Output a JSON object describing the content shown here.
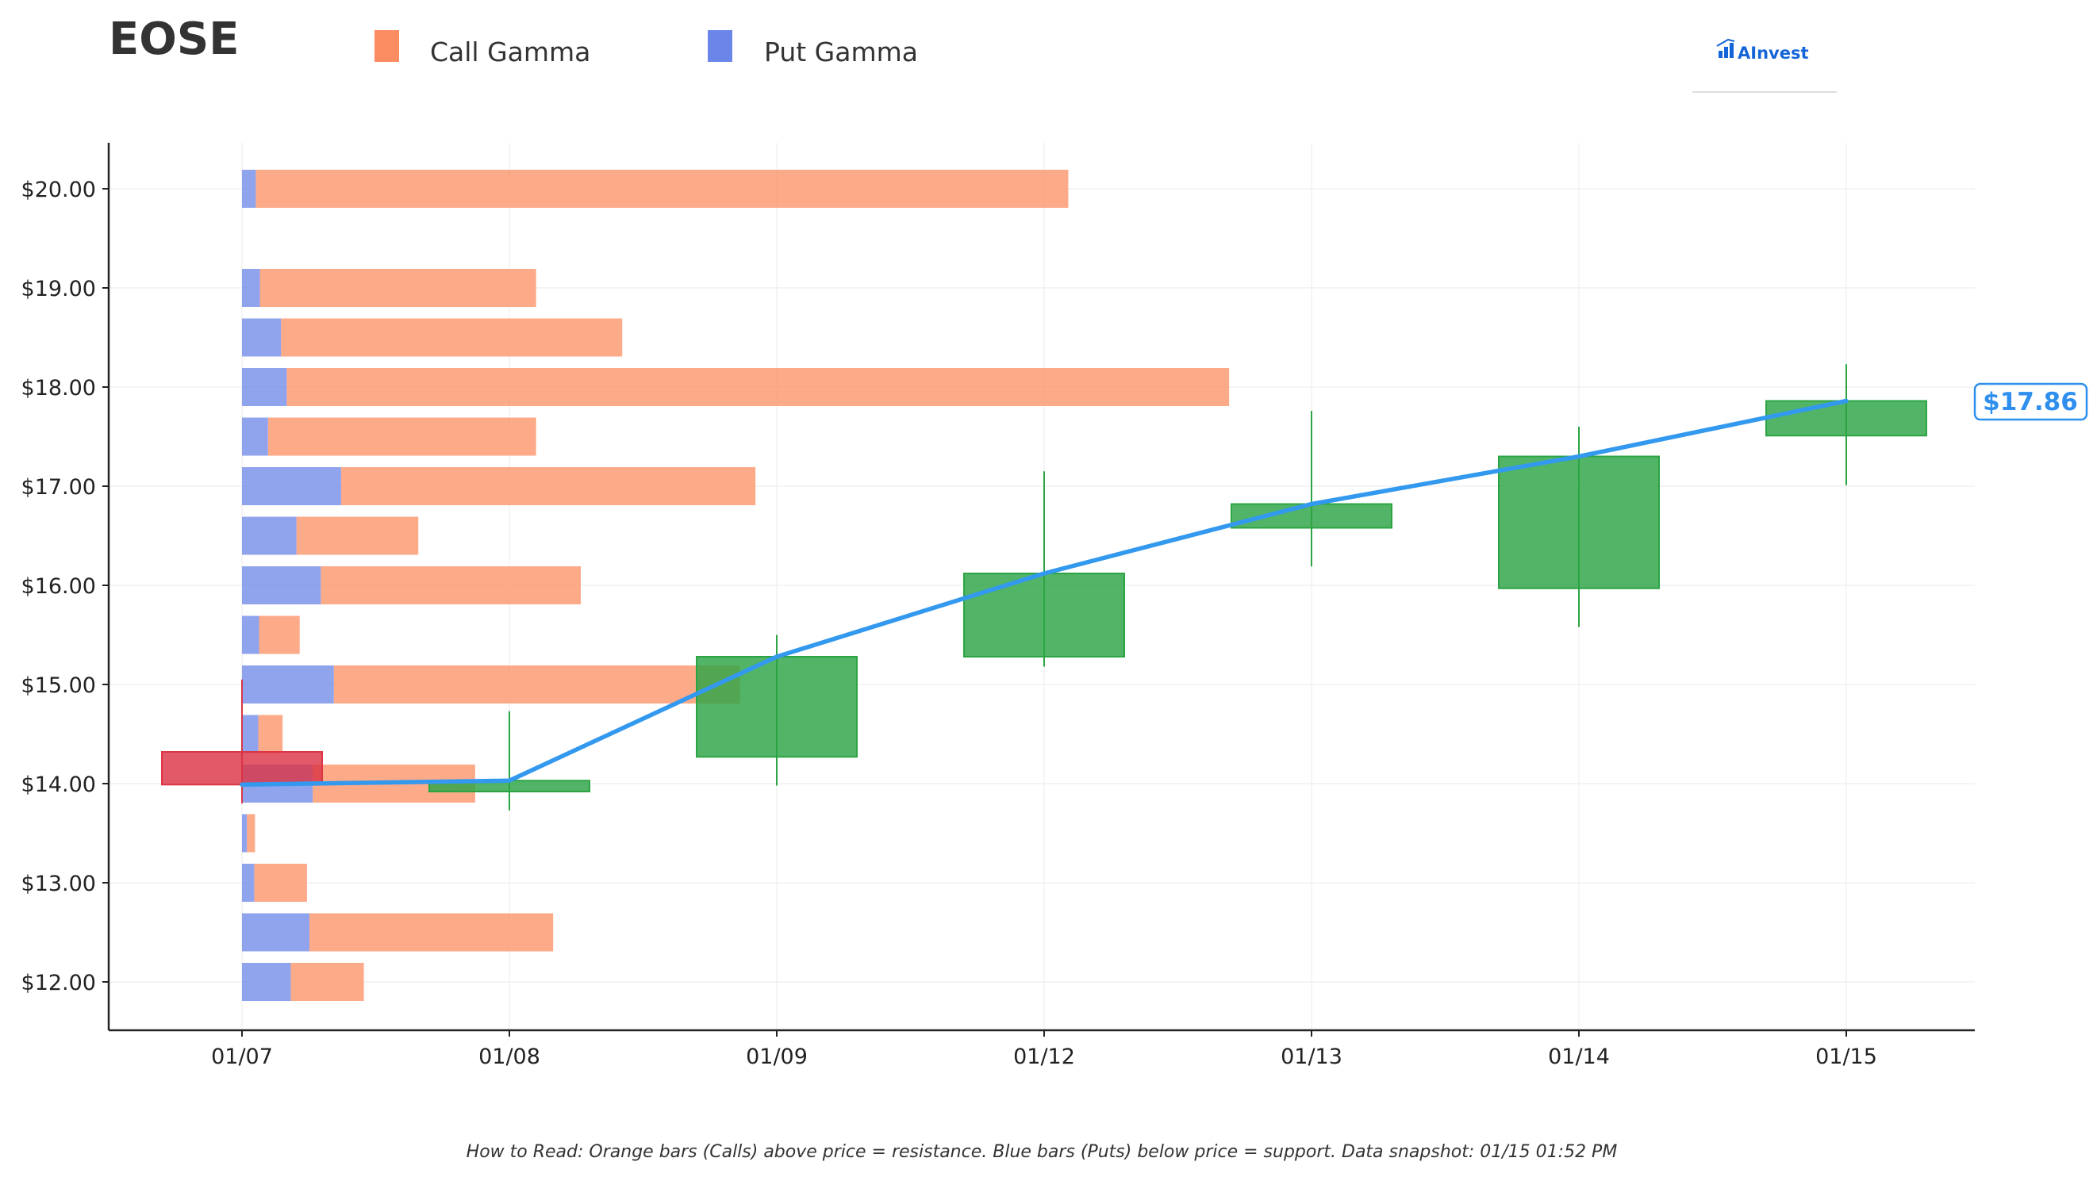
{
  "title": "EOSE",
  "legend": [
    {
      "label": "Call Gamma",
      "color": "#fc8d62"
    },
    {
      "label": "Put Gamma",
      "color": "#6b86e8"
    }
  ],
  "logo": {
    "text": "AInvest",
    "icon": "ainvest-logo-icon"
  },
  "current_price_label": "$17.86",
  "footnote": "How to Read: Orange bars (Calls) above price = resistance. Blue bars (Puts) below price = support. Data snapshot: 01/15 01:52 PM",
  "colors": {
    "call": "#fc8d62",
    "put": "#6b86e8",
    "candle_up": "#2ca444",
    "candle_down": "#dc3545",
    "price_line": "#3399ee",
    "axis": "#222222",
    "grid": "#eeeeee"
  },
  "chart_data": {
    "type": "bar",
    "dates": [
      "01/07",
      "01/08",
      "01/09",
      "01/12",
      "01/13",
      "01/14",
      "01/15"
    ],
    "ylim": [
      11.5,
      20.5
    ],
    "y_ticks": [
      {
        "value": 12,
        "label": "$12.00"
      },
      {
        "value": 13,
        "label": "$13.00"
      },
      {
        "value": 14,
        "label": "$14.00"
      },
      {
        "value": 15,
        "label": "$15.00"
      },
      {
        "value": 16,
        "label": "$16.00"
      },
      {
        "value": 17,
        "label": "$17.00"
      },
      {
        "value": 18,
        "label": "$18.00"
      },
      {
        "value": 19,
        "label": "$19.00"
      },
      {
        "value": 20,
        "label": "$20.00"
      }
    ],
    "grid": true,
    "gamma_scale_max": 100,
    "gamma_strikes": [
      12,
      12.5,
      13,
      13.5,
      14,
      14.5,
      15,
      15.5,
      16,
      16.5,
      17,
      17.5,
      18,
      18.5,
      19,
      20
    ],
    "call_gamma": [
      9,
      30,
      6.5,
      1,
      20,
      3,
      50,
      5,
      32,
      15,
      51,
      33,
      116,
      42,
      34,
      100
    ],
    "put_gamma": [
      6,
      8.3,
      1.5,
      0.6,
      8.7,
      2,
      11.3,
      2.1,
      9.7,
      6.7,
      12.2,
      3.2,
      5.5,
      4.8,
      2.2,
      1.7
    ],
    "candles": [
      {
        "date": "01/07",
        "open": 14.32,
        "close": 13.99,
        "high": 15.05,
        "low": 13.8
      },
      {
        "date": "01/08",
        "open": 13.92,
        "close": 14.03,
        "high": 14.73,
        "low": 13.73
      },
      {
        "date": "01/09",
        "open": 14.27,
        "close": 15.28,
        "high": 15.5,
        "low": 13.98
      },
      {
        "date": "01/12",
        "open": 15.28,
        "close": 16.12,
        "high": 17.15,
        "low": 15.18
      },
      {
        "date": "01/13",
        "open": 16.58,
        "close": 16.82,
        "high": 17.76,
        "low": 16.19
      },
      {
        "date": "01/14",
        "open": 15.97,
        "close": 17.3,
        "high": 17.6,
        "low": 15.58
      },
      {
        "date": "01/15",
        "open": 17.51,
        "close": 17.86,
        "high": 18.23,
        "low": 17.01
      }
    ],
    "close_line": [
      13.99,
      14.03,
      15.28,
      16.12,
      16.82,
      17.3,
      17.86
    ]
  }
}
